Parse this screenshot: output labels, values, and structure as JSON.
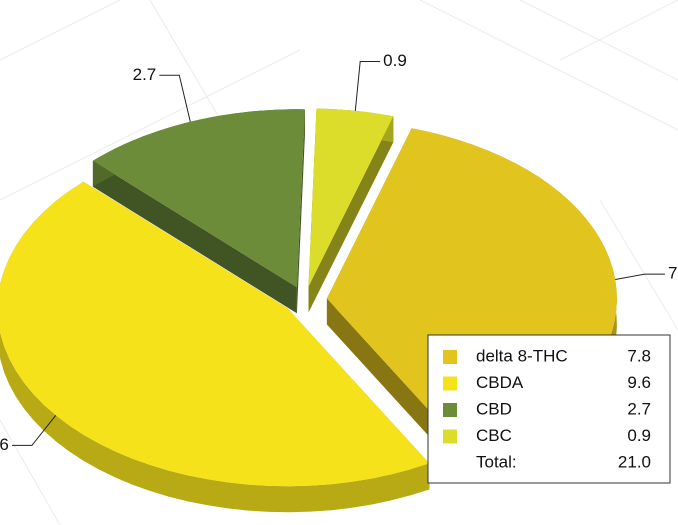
{
  "chart_data": {
    "type": "pie3d",
    "categories": [
      "delta 8-THC",
      "CBDA",
      "CBD",
      "CBC"
    ],
    "values": [
      7.8,
      9.6,
      2.7,
      0.9
    ],
    "colors": [
      "#e2c41e",
      "#f5e21a",
      "#6d8c3a",
      "#dcdc2a"
    ],
    "total_label": "Total:",
    "total": 21,
    "total_value_label": "21.0",
    "legend": "bottom-right"
  }
}
